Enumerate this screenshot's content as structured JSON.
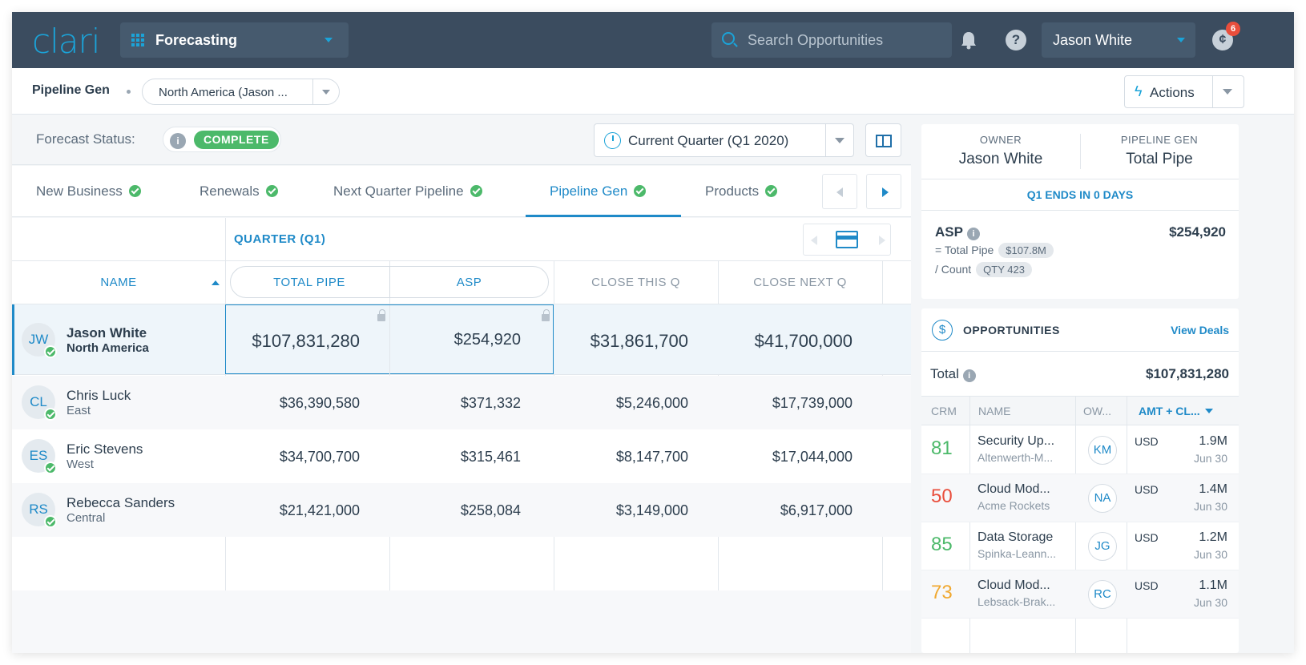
{
  "topnav": {
    "logo": "clari",
    "app": "Forecasting",
    "search_placeholder": "Search Opportunities",
    "user": "Jason White",
    "notification_count": "6"
  },
  "subbar": {
    "title": "Pipeline Gen",
    "team": "North America (Jason ...",
    "actions": "Actions"
  },
  "status": {
    "label": "Forecast Status:",
    "value": "COMPLETE",
    "period": "Current Quarter (Q1 2020)"
  },
  "tabs": [
    {
      "label": "New Business"
    },
    {
      "label": "Renewals"
    },
    {
      "label": "Next Quarter Pipeline"
    },
    {
      "label": "Pipeline Gen"
    },
    {
      "label": "Products"
    }
  ],
  "table": {
    "quarter_label": "QUARTER (Q1)",
    "columns": [
      "NAME",
      "TOTAL PIPE",
      "ASP",
      "CLOSE THIS Q",
      "CLOSE NEXT Q"
    ],
    "rows": [
      {
        "initials": "JW",
        "name": "Jason White",
        "region": "North America",
        "total_pipe": "$107,831,280",
        "asp": "$254,920",
        "close_this_q": "$31,861,700",
        "close_next_q": "$41,700,000"
      },
      {
        "initials": "CL",
        "name": "Chris Luck",
        "region": "East",
        "total_pipe": "$36,390,580",
        "asp": "$371,332",
        "close_this_q": "$5,246,000",
        "close_next_q": "$17,739,000"
      },
      {
        "initials": "ES",
        "name": "Eric Stevens",
        "region": "West",
        "total_pipe": "$34,700,700",
        "asp": "$315,461",
        "close_this_q": "$8,147,700",
        "close_next_q": "$17,044,000"
      },
      {
        "initials": "RS",
        "name": "Rebecca Sanders",
        "region": "Central",
        "total_pipe": "$21,421,000",
        "asp": "$258,084",
        "close_this_q": "$3,149,000",
        "close_next_q": "$6,917,000"
      }
    ]
  },
  "summary": {
    "owner_label": "OWNER",
    "owner": "Jason White",
    "pipeline_gen_label": "PIPELINE GEN",
    "pipeline_gen": "Total Pipe",
    "ends_prefix": "Q1 ENDS IN",
    "ends_value": "0 DAYS",
    "asp_label": "ASP",
    "asp_value": "$254,920",
    "total_pipe_label": "= Total Pipe",
    "total_pipe_chip": "$107.8M",
    "count_label": "/ Count",
    "count_chip": "QTY 423"
  },
  "opportunities": {
    "title": "OPPORTUNITIES",
    "view_deals": "View Deals",
    "total_label": "Total",
    "total_value": "$107,831,280",
    "headers": [
      "CRM",
      "NAME",
      "OW...",
      "AMT + CL..."
    ],
    "rows": [
      {
        "score": "81",
        "score_color": "#4cb96a",
        "name": "Security Up...",
        "account": "Altenwerth-M...",
        "owner": "KM",
        "currency": "USD",
        "amount": "1.9M",
        "close": "Jun 30"
      },
      {
        "score": "50",
        "score_color": "#e94e3c",
        "name": "Cloud Mod...",
        "account": "Acme Rockets",
        "owner": "NA",
        "currency": "USD",
        "amount": "1.4M",
        "close": "Jun 30"
      },
      {
        "score": "85",
        "score_color": "#4cb96a",
        "name": "Data Storage",
        "account": "Spinka-Leann...",
        "owner": "JG",
        "currency": "USD",
        "amount": "1.2M",
        "close": "Jun 30"
      },
      {
        "score": "73",
        "score_color": "#f0a830",
        "name": "Cloud Mod...",
        "account": "Lebsack-Brak...",
        "owner": "RC",
        "currency": "USD",
        "amount": "1.1M",
        "close": "Jun 30"
      }
    ]
  },
  "icons": [
    "grid-icon",
    "search-icon",
    "bell-icon",
    "help-icon",
    "chat-icon",
    "bolt-icon",
    "info-icon",
    "clock-icon",
    "layout-icon",
    "calendar-icon",
    "lock-icon",
    "dollar-icon",
    "check-icon"
  ],
  "colors": {
    "accent": "#1f8ac8",
    "nav": "#3b4c5f",
    "success": "#4cb96a",
    "danger": "#e94e3c",
    "warning": "#f0a830"
  }
}
